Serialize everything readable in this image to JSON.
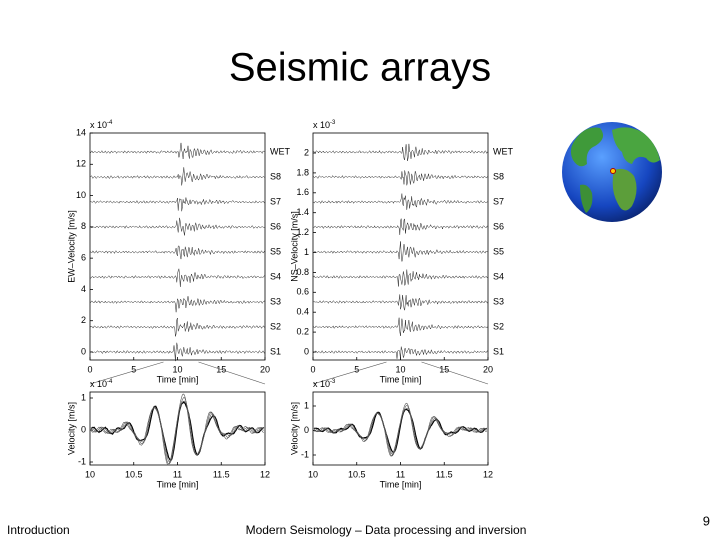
{
  "title": "Seismic arrays",
  "figure": {
    "top_left": {
      "scale": {
        "base": "x 10",
        "exp": "-4"
      },
      "ylabel": "EW–Velocity [m/s]",
      "xlabel": "Time [min]",
      "yticks": [
        0,
        2,
        4,
        6,
        8,
        10,
        12,
        14
      ],
      "xticks": [
        0,
        5,
        10,
        15,
        20
      ],
      "stations": [
        "WET",
        "S8",
        "S7",
        "S6",
        "S5",
        "S4",
        "S3",
        "S2",
        "S1"
      ]
    },
    "top_right": {
      "scale": {
        "base": "x 10",
        "exp": "-3"
      },
      "ylabel": "NS–Velocity [m/s]",
      "xlabel": "Time [min]",
      "yticks": [
        0,
        0.2,
        0.4,
        0.6,
        0.8,
        1,
        1.2,
        1.4,
        1.6,
        1.8,
        2
      ],
      "xticks": [
        0,
        5,
        10,
        15,
        20
      ],
      "stations": [
        "WET",
        "S8",
        "S7",
        "S6",
        "S5",
        "S4",
        "S3",
        "S2",
        "S1"
      ]
    },
    "bottom_left": {
      "scale": {
        "base": "x 10",
        "exp": "-4"
      },
      "ylabel": "Velocity [m/s]",
      "xlabel": "Time [min]",
      "yticks": [
        -1,
        0,
        1
      ],
      "xticks": [
        10,
        10.5,
        11,
        11.5,
        12
      ]
    },
    "bottom_right": {
      "scale": {
        "base": "x 10",
        "exp": "-3"
      },
      "ylabel": "Velocity [m/s]",
      "xlabel": "Time [min]",
      "yticks": [
        -1,
        0,
        1
      ],
      "xticks": [
        10,
        10.5,
        11,
        11.5,
        12
      ]
    }
  },
  "footer": {
    "left": "Introduction",
    "center": "Modern Seismology – Data processing and inversion",
    "page": "9"
  }
}
